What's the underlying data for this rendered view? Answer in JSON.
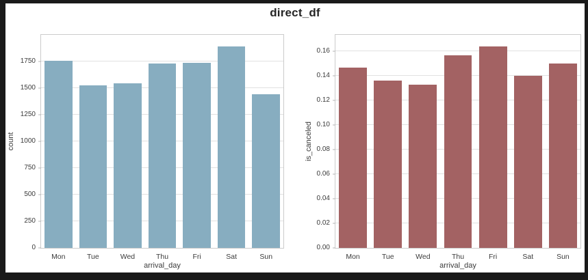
{
  "title": "direct_df",
  "colors": {
    "page_bg": "#1a1a1a",
    "figure_bg": "#ffffff",
    "grid": "#e1e1e1",
    "spine": "#cbcbcb",
    "tick_mark": "#b5b5b5",
    "tick_text": "#3a3a3a",
    "axis_label_text": "#3a3a3a",
    "title_text": "#252525",
    "count_bar": "#87adc0",
    "cancel_rate_bar": "#a36263"
  },
  "chart_data": [
    {
      "type": "bar",
      "title": "",
      "categories": [
        "Mon",
        "Tue",
        "Wed",
        "Thu",
        "Fri",
        "Sat",
        "Sun"
      ],
      "values": [
        1755,
        1525,
        1545,
        1730,
        1735,
        1890,
        1445
      ],
      "xlabel": "arrival_day",
      "ylabel": "count",
      "ylim": [
        0,
        2000
      ],
      "yticks": [
        0,
        250,
        500,
        750,
        1000,
        1250,
        1500,
        1750
      ],
      "ytick_labels": [
        "0",
        "250",
        "500",
        "750",
        "1000",
        "1250",
        "1500",
        "1750"
      ],
      "bar_color": "#87adc0",
      "bar_rel_width": 0.8,
      "grid": true,
      "legend": null
    },
    {
      "type": "bar",
      "title": "",
      "categories": [
        "Mon",
        "Tue",
        "Wed",
        "Thu",
        "Fri",
        "Sat",
        "Sun"
      ],
      "values": [
        0.147,
        0.136,
        0.133,
        0.157,
        0.164,
        0.14,
        0.15
      ],
      "xlabel": "arrival_day",
      "ylabel": "is_canceled",
      "ylim": [
        0,
        0.1735
      ],
      "yticks": [
        0,
        0.02,
        0.04,
        0.06,
        0.08,
        0.1,
        0.12,
        0.14,
        0.16
      ],
      "ytick_labels": [
        "0.00",
        "0.02",
        "0.04",
        "0.06",
        "0.08",
        "0.10",
        "0.12",
        "0.14",
        "0.16"
      ],
      "bar_color": "#a36263",
      "bar_rel_width": 0.8,
      "grid": true,
      "legend": null
    }
  ]
}
